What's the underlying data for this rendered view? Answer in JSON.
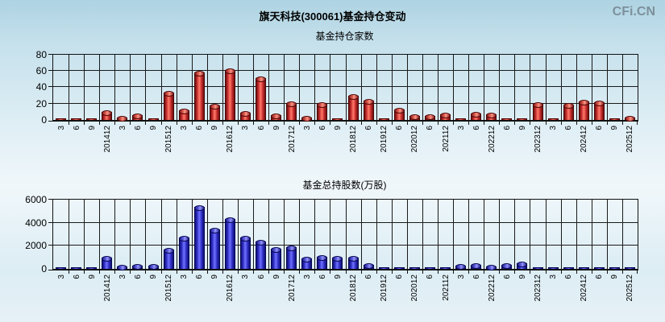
{
  "page": {
    "title": "旗天科技(300061)基金持仓变动",
    "logo": "CFi.CN"
  },
  "colors": {
    "red_bar": "#d83030",
    "blue_bar": "#3a3ac8",
    "grid": "#1a1a1a",
    "logo_text": "#7d909c",
    "background_top": "#aed3e2",
    "background_bottom": "#e6f1f6"
  },
  "chart_data": [
    {
      "type": "bar",
      "title": "基金持仓家数",
      "bar_color": "red",
      "ylim": [
        0,
        80
      ],
      "yticks": [
        0,
        20,
        40,
        60,
        80
      ],
      "grid": true,
      "legend": "none",
      "categories": [
        "3",
        "6",
        "9",
        "201412",
        "3",
        "6",
        "9",
        "201512",
        "3",
        "6",
        "9",
        "201612",
        "3",
        "6",
        "9",
        "201712",
        "3",
        "6",
        "9",
        "201812",
        "6",
        "201912",
        "6",
        "202012",
        "6",
        "202112",
        "3",
        "6",
        "202212",
        "6",
        "9",
        "202312",
        "3",
        "6",
        "202412",
        "6",
        "9",
        "202512"
      ],
      "values": [
        2,
        1,
        2,
        10,
        3,
        6,
        1,
        34,
        12,
        58,
        18,
        61,
        9,
        51,
        6,
        21,
        3,
        20,
        1,
        30,
        24,
        2,
        13,
        5,
        5,
        7,
        1,
        8,
        7,
        2,
        1,
        20,
        1,
        19,
        23,
        22,
        1,
        3
      ]
    },
    {
      "type": "bar",
      "title": "基金总持股数(万股)",
      "bar_color": "blue",
      "ylim": [
        0,
        6000
      ],
      "yticks": [
        0,
        2000,
        4000,
        6000
      ],
      "grid": true,
      "legend": "none",
      "categories": [
        "3",
        "6",
        "9",
        "201412",
        "3",
        "6",
        "9",
        "201512",
        "3",
        "6",
        "9",
        "201612",
        "3",
        "6",
        "9",
        "201712",
        "3",
        "6",
        "9",
        "201812",
        "6",
        "201912",
        "6",
        "202012",
        "6",
        "202112",
        "3",
        "6",
        "202212",
        "6",
        "9",
        "202312",
        "3",
        "6",
        "202412",
        "6",
        "9",
        "202512"
      ],
      "values": [
        60,
        60,
        140,
        1000,
        200,
        250,
        300,
        1650,
        2700,
        5400,
        3450,
        4300,
        2750,
        2400,
        1750,
        1850,
        900,
        1050,
        1000,
        950,
        350,
        80,
        60,
        80,
        60,
        80,
        250,
        350,
        200,
        350,
        480,
        150,
        60,
        50,
        70,
        60,
        50,
        90
      ]
    }
  ]
}
